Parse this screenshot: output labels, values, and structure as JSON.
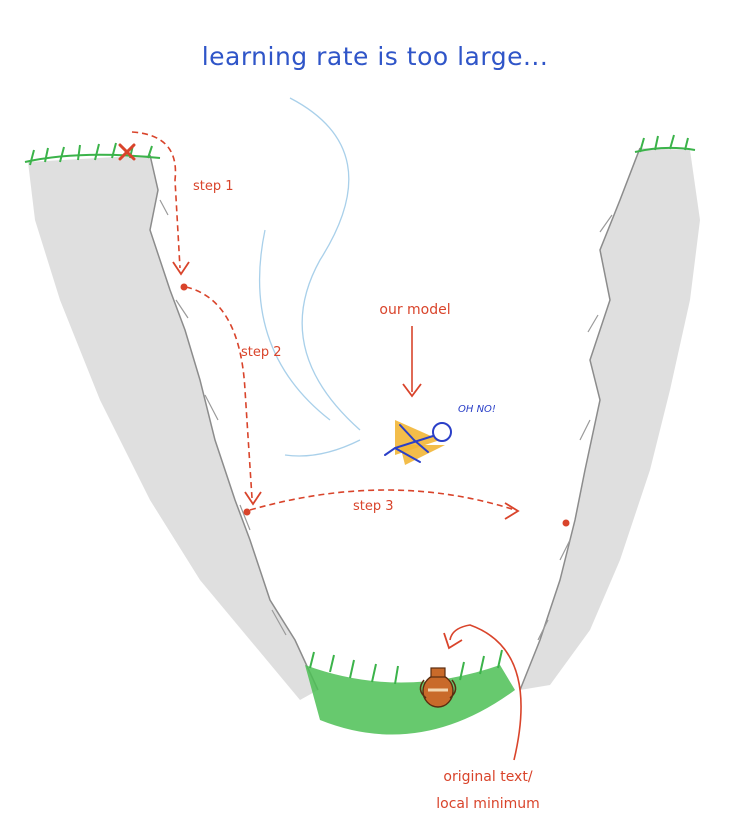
{
  "title": "learning rate is too large...",
  "labels": {
    "step1": "step 1",
    "step2": "step 2",
    "step3": "step 3",
    "model": "our model",
    "exclaim": "OH NO!",
    "target_line1": "original text/",
    "target_line2": "local minimum"
  },
  "colors": {
    "title": "#2f55c8",
    "annotation": "#d9442b",
    "cliff": "#d8d8d8",
    "grass": "#3bb34a",
    "model_figure": "#2a3fc8",
    "wings": "#f2b636",
    "wind": "#a9d0ea",
    "vase": "#c96a2a"
  },
  "icons": {
    "start": "red-x-icon",
    "model": "winged-stick-figure-icon",
    "minimum": "amphora-vase-icon"
  }
}
